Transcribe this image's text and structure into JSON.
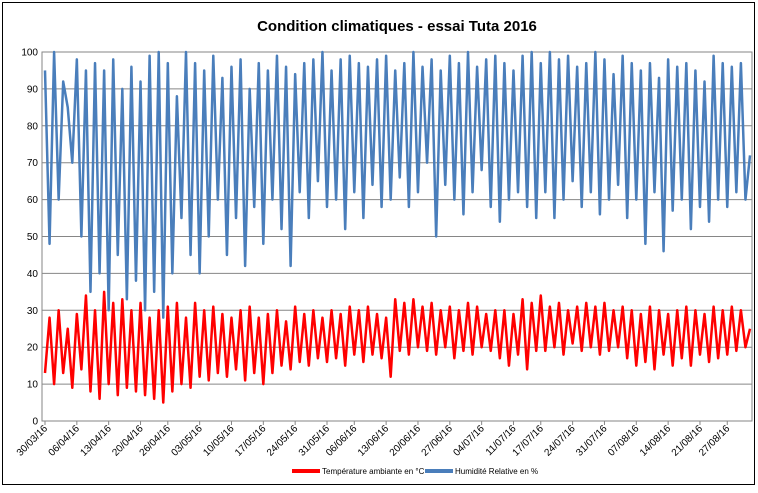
{
  "chart_data": {
    "type": "line",
    "title": "Condition climatiques - essai Tuta 2016",
    "categories": [
      "30/03/16",
      null,
      null,
      null,
      null,
      null,
      null,
      "06/04/16",
      null,
      null,
      null,
      null,
      null,
      null,
      "13/04/16",
      null,
      null,
      null,
      null,
      null,
      null,
      "20/04/16",
      null,
      null,
      null,
      null,
      null,
      "26/04/16",
      null,
      null,
      null,
      null,
      null,
      null,
      "03/05/16",
      null,
      null,
      null,
      null,
      null,
      null,
      "10/05/16",
      null,
      null,
      null,
      null,
      null,
      null,
      "17/05/16",
      null,
      null,
      null,
      null,
      null,
      null,
      "24/05/16",
      null,
      null,
      null,
      null,
      null,
      null,
      "31/05/16",
      null,
      null,
      null,
      null,
      null,
      "06/06/16",
      null,
      null,
      null,
      null,
      null,
      null,
      "13/06/16",
      null,
      null,
      null,
      null,
      null,
      null,
      "20/06/16",
      null,
      null,
      null,
      null,
      null,
      null,
      "27/06/16",
      null,
      null,
      null,
      null,
      null,
      null,
      "04/07/16",
      null,
      null,
      null,
      null,
      null,
      null,
      "11/07/16",
      null,
      null,
      null,
      null,
      null,
      "17/07/16",
      null,
      null,
      null,
      null,
      null,
      null,
      "24/07/16",
      null,
      null,
      null,
      null,
      null,
      null,
      "31/07/16",
      null,
      null,
      null,
      null,
      null,
      null,
      "07/08/16",
      null,
      null,
      null,
      null,
      null,
      null,
      "14/08/16",
      null,
      null,
      null,
      null,
      null,
      null,
      "21/08/16",
      null,
      null,
      null,
      null,
      null,
      "27/08/16",
      null,
      null,
      null,
      null,
      null
    ],
    "series": [
      {
        "name": "Température ambiante en °C",
        "color": "#ff0000",
        "values": [
          13,
          28,
          10,
          30,
          13,
          25,
          9,
          29,
          14,
          34,
          8,
          30,
          6,
          35,
          10,
          32,
          7,
          33,
          9,
          30,
          8,
          32,
          7,
          28,
          6,
          30,
          5,
          31,
          8,
          32,
          10,
          28,
          9,
          32,
          12,
          30,
          11,
          31,
          13,
          29,
          12,
          28,
          14,
          30,
          11,
          31,
          13,
          28,
          10,
          29,
          13,
          30,
          15,
          27,
          14,
          31,
          16,
          29,
          15,
          30,
          17,
          28,
          16,
          30,
          17,
          29,
          15,
          31,
          18,
          30,
          16,
          31,
          18,
          29,
          17,
          28,
          12,
          33,
          19,
          32,
          18,
          33,
          20,
          31,
          19,
          32,
          18,
          30,
          20,
          31,
          17,
          30,
          19,
          32,
          18,
          31,
          20,
          29,
          19,
          30,
          17,
          30,
          15,
          29,
          18,
          33,
          14,
          32,
          19,
          34,
          19,
          31,
          20,
          32,
          18,
          30,
          21,
          31,
          19,
          32,
          20,
          31,
          18,
          32,
          19,
          30,
          20,
          31,
          17,
          30,
          15,
          29,
          16,
          31,
          14,
          30,
          18,
          29,
          15,
          30,
          17,
          31,
          15,
          30,
          18,
          29,
          16,
          31,
          17,
          30,
          18,
          31,
          19,
          30,
          20,
          25
        ]
      },
      {
        "name": "Humidité Relative en %",
        "color": "#4a7ebb",
        "values": [
          95,
          48,
          100,
          60,
          92,
          85,
          70,
          98,
          50,
          95,
          35,
          97,
          40,
          95,
          30,
          98,
          45,
          90,
          33,
          96,
          38,
          92,
          30,
          99,
          35,
          100,
          28,
          97,
          40,
          88,
          55,
          100,
          45,
          97,
          40,
          95,
          50,
          99,
          60,
          93,
          45,
          96,
          55,
          98,
          42,
          90,
          58,
          97,
          48,
          95,
          60,
          99,
          52,
          96,
          42,
          94,
          62,
          97,
          55,
          98,
          65,
          100,
          58,
          95,
          60,
          98,
          52,
          99,
          62,
          97,
          55,
          96,
          64,
          98,
          58,
          99,
          60,
          95,
          66,
          97,
          58,
          100,
          62,
          96,
          70,
          98,
          50,
          95,
          64,
          99,
          60,
          97,
          56,
          100,
          62,
          96,
          68,
          98,
          58,
          99,
          54,
          97,
          60,
          95,
          62,
          99,
          58,
          100,
          55,
          97,
          62,
          100,
          55,
          98,
          60,
          99,
          65,
          96,
          58,
          97,
          62,
          100,
          56,
          98,
          60,
          94,
          64,
          99,
          55,
          97,
          60,
          95,
          48,
          97,
          62,
          93,
          46,
          98,
          57,
          96,
          60,
          97,
          52,
          95,
          58,
          92,
          54,
          99,
          60,
          97,
          58,
          96,
          62,
          97,
          60,
          72
        ]
      }
    ],
    "ylim": [
      0,
      100
    ],
    "yticks": [
      0,
      10,
      20,
      30,
      40,
      50,
      60,
      70,
      80,
      90,
      100
    ],
    "grid": true,
    "legend": "bottom"
  }
}
